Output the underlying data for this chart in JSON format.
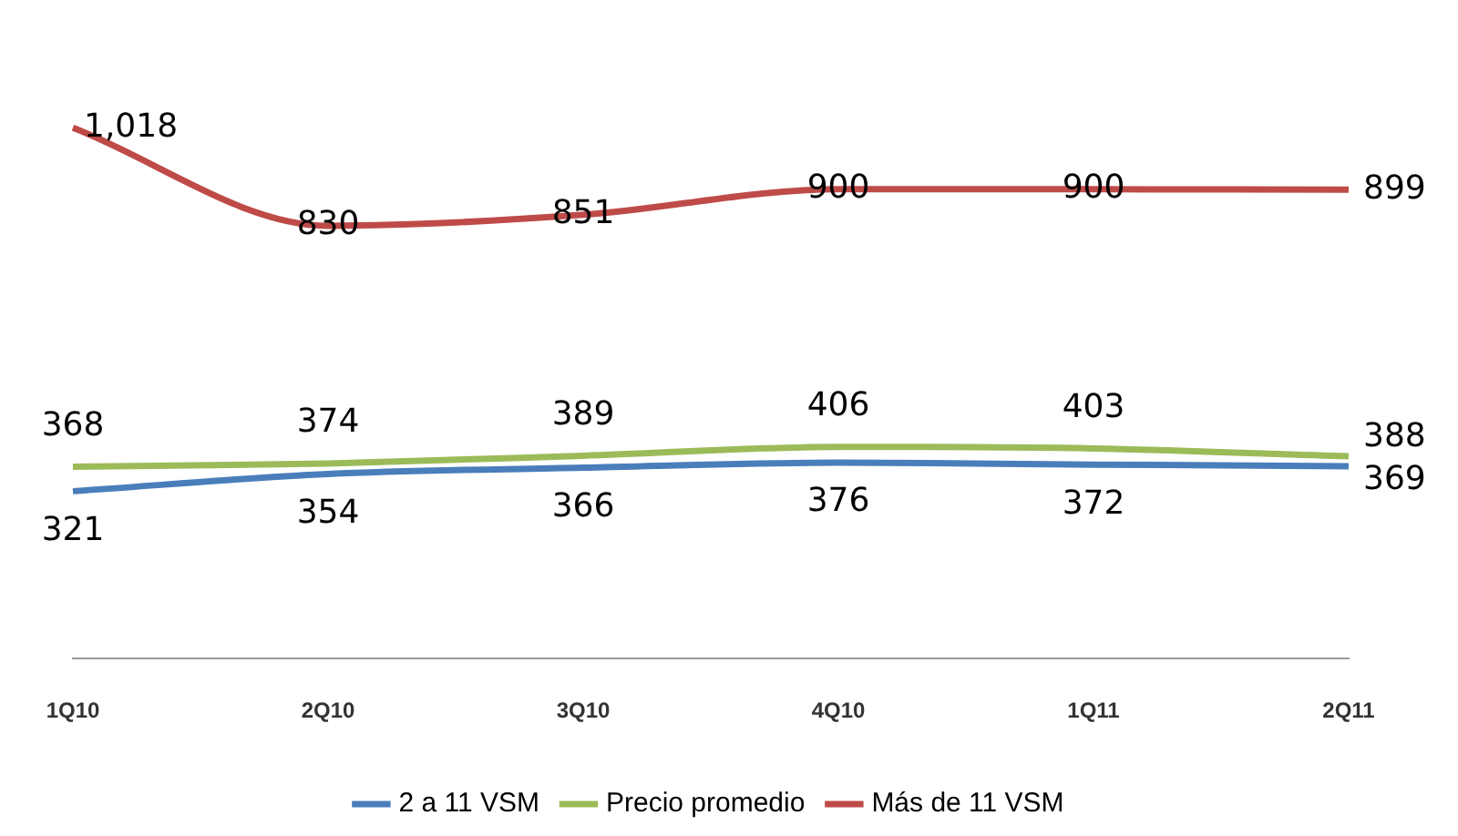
{
  "chart_data": {
    "type": "line",
    "categories": [
      "1Q10",
      "2Q10",
      "3Q10",
      "4Q10",
      "1Q11",
      "2Q11"
    ],
    "series": [
      {
        "name": "2 a 11 VSM",
        "color": "#4a7ebb",
        "values": [
          321,
          354,
          366,
          376,
          372,
          369
        ]
      },
      {
        "name": "Precio promedio",
        "color": "#9bbb59",
        "values": [
          368,
          374,
          389,
          406,
          403,
          388
        ]
      },
      {
        "name": "Más de 11 VSM",
        "color": "#be4b48",
        "values": [
          1018,
          830,
          851,
          900,
          900,
          899
        ],
        "value_labels": [
          "1,018",
          "830",
          "851",
          "900",
          "900",
          "899"
        ]
      }
    ],
    "data_labels": true,
    "legend": "bottom",
    "grid": false,
    "marker": "none",
    "line_style": "solid"
  }
}
